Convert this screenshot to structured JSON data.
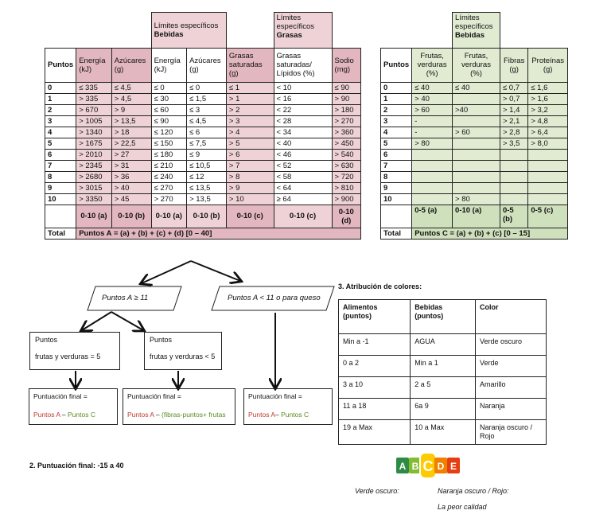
{
  "table_a": {
    "top_headers": {
      "bebidas": "Límites específicos",
      "bebidas_b": "Bebidas",
      "grasas": "Límites específicos",
      "grasas_b": "Grasas"
    },
    "columns": [
      "Puntos",
      "Energía (kJ)",
      "Azúcares (g)",
      "Energía (kJ)",
      "Azúcares (g)",
      "Grasas saturadas (g)",
      "Grasas saturadas/ Lípidos (%)",
      "Sodio (mg)"
    ],
    "rows": [
      [
        "0",
        "≤ 335",
        "≤ 4,5",
        "≤ 0",
        "≤ 0",
        "≤ 1",
        "< 10",
        "≤ 90"
      ],
      [
        "1",
        "> 335",
        "> 4,5",
        "≤ 30",
        "≤ 1,5",
        "> 1",
        "< 16",
        "> 90"
      ],
      [
        "2",
        "> 670",
        "> 9",
        "≤ 60",
        "≤ 3",
        "> 2",
        "< 22",
        "> 180"
      ],
      [
        "3",
        "> 1005",
        "> 13,5",
        "≤ 90",
        "≤ 4,5",
        "> 3",
        "< 28",
        "> 270"
      ],
      [
        "4",
        "> 1340",
        "> 18",
        "≤ 120",
        "≤ 6",
        "> 4",
        "< 34",
        "> 360"
      ],
      [
        "5",
        "> 1675",
        "> 22,5",
        "≤ 150",
        "≤ 7,5",
        "> 5",
        "< 40",
        "> 450"
      ],
      [
        "6",
        "> 2010",
        "> 27",
        "≤ 180",
        "≤ 9",
        "> 6",
        "< 46",
        "> 540"
      ],
      [
        "7",
        "> 2345",
        "> 31",
        "≤ 210",
        "≤ 10,5",
        "> 7",
        "< 52",
        "> 630"
      ],
      [
        "8",
        "> 2680",
        "> 36",
        "≤ 240",
        "≤ 12",
        "> 8",
        "< 58",
        "> 720"
      ],
      [
        "9",
        "> 3015",
        "> 40",
        "≤ 270",
        "≤ 13,5",
        "> 9",
        "< 64",
        "> 810"
      ],
      [
        "10",
        "> 3350",
        "> 45",
        "> 270",
        "> 13,5",
        "> 10",
        "≥ 64",
        "> 900"
      ]
    ],
    "range_row": [
      "0-10 (a)",
      "0-10 (b)",
      "0-10 (a)",
      "0-10 (b)",
      "0-10 (c)",
      "0-10 (c)",
      "0-10 (d)"
    ],
    "total_label": "Total",
    "total_formula": "Puntos A = (a) + (b) + (c) + (d) [0 – 40]"
  },
  "table_c": {
    "top_header": "Límites específicos",
    "top_header_b": "Bebidas",
    "columns": [
      "Puntos",
      "Frutas, verduras (%)",
      "Frutas, verduras (%)",
      "Fibras (g)",
      "Proteínas (g)"
    ],
    "rows": [
      [
        "0",
        "≤ 40",
        "≤ 40",
        "≤ 0,7",
        "≤ 1,6"
      ],
      [
        "1",
        "> 40",
        "",
        "> 0,7",
        "> 1,6"
      ],
      [
        "2",
        "> 60",
        ">40",
        "> 1,4",
        "> 3,2"
      ],
      [
        "3",
        "-",
        "",
        "> 2,1",
        "> 4,8"
      ],
      [
        "4",
        "-",
        "> 60",
        "> 2,8",
        "> 6,4"
      ],
      [
        "5",
        "> 80",
        "",
        "> 3,5",
        "> 8,0"
      ],
      [
        "6",
        "",
        "",
        "",
        ""
      ],
      [
        "7",
        "",
        "",
        "",
        ""
      ],
      [
        "8",
        "",
        "",
        "",
        ""
      ],
      [
        "9",
        "",
        "",
        "",
        ""
      ],
      [
        "10",
        "",
        "> 80",
        "",
        ""
      ]
    ],
    "range_row": [
      "0-5 (a)",
      "0-10 (a)",
      "0-5 (b)",
      "0-5 (c)"
    ],
    "total_label": "Total",
    "total_formula": "Puntos C = (a) + (b) + (c) [0 – 15]"
  },
  "flow": {
    "cond_left": "Puntos A ≥ 11",
    "cond_right": "Puntos A < 11 o para queso",
    "box1_a": "Puntos",
    "box1_b": "frutas y verduras = 5",
    "box2_a": "Puntos",
    "box2_b": "frutas y verduras < 5",
    "final_label": "Puntuación final =",
    "f1_a": "Puntos A",
    "f1_sep": " – ",
    "f1_c": "Puntos C",
    "f2_a": "Puntos A",
    "f2_sep": " – ",
    "f2_c": "(fibras-puntos+ frutas",
    "f3_a": "Puntos A",
    "f3_sep": "– ",
    "f3_c": "Puntos C"
  },
  "colors_section": {
    "title": "3. Atribución de colores:",
    "headers": [
      "Alimentos (puntos)",
      "Bebidas (puntos)",
      "Color"
    ],
    "rows": [
      [
        "Min a -1",
        "AGUA",
        "Verde oscuro"
      ],
      [
        "0 a 2",
        "Min a 1",
        "Verde"
      ],
      [
        "3 a 10",
        "2 a 5",
        "Amarillo"
      ],
      [
        "11 a 18",
        "6a 9",
        "Naranja"
      ],
      [
        "19 a Max",
        "10 a Max",
        "Naranja oscuro / Rojo"
      ]
    ]
  },
  "score_note": "2. Puntuación final: -15 a 40",
  "nutriscore": {
    "letters": [
      "A",
      "B",
      "C",
      "D",
      "E"
    ],
    "colors": [
      "#2e8b46",
      "#85bb2f",
      "#fecb02",
      "#ee8100",
      "#e63e11"
    ],
    "label_left": "Verde oscuro:",
    "label_right": "Naranja oscuro / Rojo:",
    "label_bottom": "La peor calidad"
  }
}
